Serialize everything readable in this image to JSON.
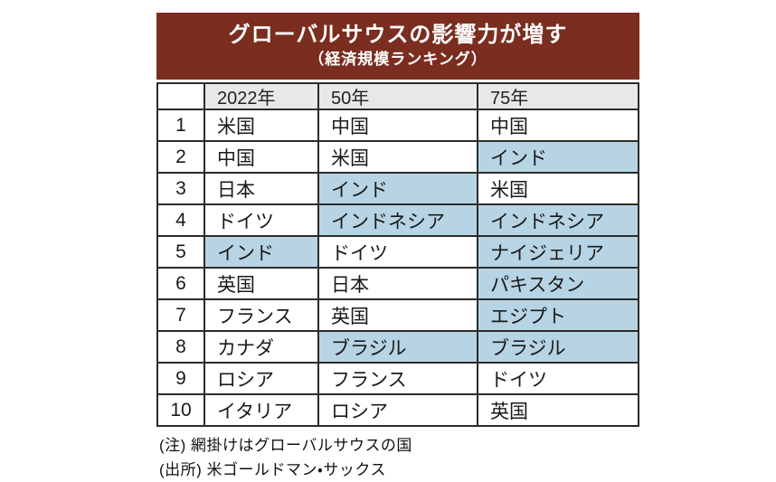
{
  "colors": {
    "banner_bg": "#7b2d20",
    "banner_text": "#ffffff",
    "header_bg": "#e8e8e8",
    "shade_bg": "#b7d4e4",
    "border": "#2b2b2b",
    "text": "#1a1a1a"
  },
  "chart_data": {
    "type": "table",
    "title": "グローバルサウスの影響力が増す",
    "subtitle": "（経済規模ランキング）",
    "columns": [
      "",
      "2022年",
      "50年",
      "75年"
    ],
    "rows": [
      {
        "rank": "1",
        "cells": [
          "米国",
          "中国",
          "中国"
        ],
        "shaded": [
          false,
          false,
          false
        ]
      },
      {
        "rank": "2",
        "cells": [
          "中国",
          "米国",
          "インド"
        ],
        "shaded": [
          false,
          false,
          true
        ]
      },
      {
        "rank": "3",
        "cells": [
          "日本",
          "インド",
          "米国"
        ],
        "shaded": [
          false,
          true,
          false
        ]
      },
      {
        "rank": "4",
        "cells": [
          "ドイツ",
          "インドネシア",
          "インドネシア"
        ],
        "shaded": [
          false,
          true,
          true
        ]
      },
      {
        "rank": "5",
        "cells": [
          "インド",
          "ドイツ",
          "ナイジェリア"
        ],
        "shaded": [
          true,
          false,
          true
        ]
      },
      {
        "rank": "6",
        "cells": [
          "英国",
          "日本",
          "パキスタン"
        ],
        "shaded": [
          false,
          false,
          true
        ]
      },
      {
        "rank": "7",
        "cells": [
          "フランス",
          "英国",
          "エジプト"
        ],
        "shaded": [
          false,
          false,
          true
        ]
      },
      {
        "rank": "8",
        "cells": [
          "カナダ",
          "ブラジル",
          "ブラジル"
        ],
        "shaded": [
          false,
          true,
          true
        ]
      },
      {
        "rank": "9",
        "cells": [
          "ロシア",
          "フランス",
          "ドイツ"
        ],
        "shaded": [
          false,
          false,
          false
        ]
      },
      {
        "rank": "10",
        "cells": [
          "イタリア",
          "ロシア",
          "英国"
        ],
        "shaded": [
          false,
          false,
          false
        ]
      }
    ],
    "shading_meaning": "グローバルサウスの国",
    "note": "(注) 網掛けはグローバルサウスの国",
    "source": "(出所) 米ゴールドマン・サックス"
  }
}
